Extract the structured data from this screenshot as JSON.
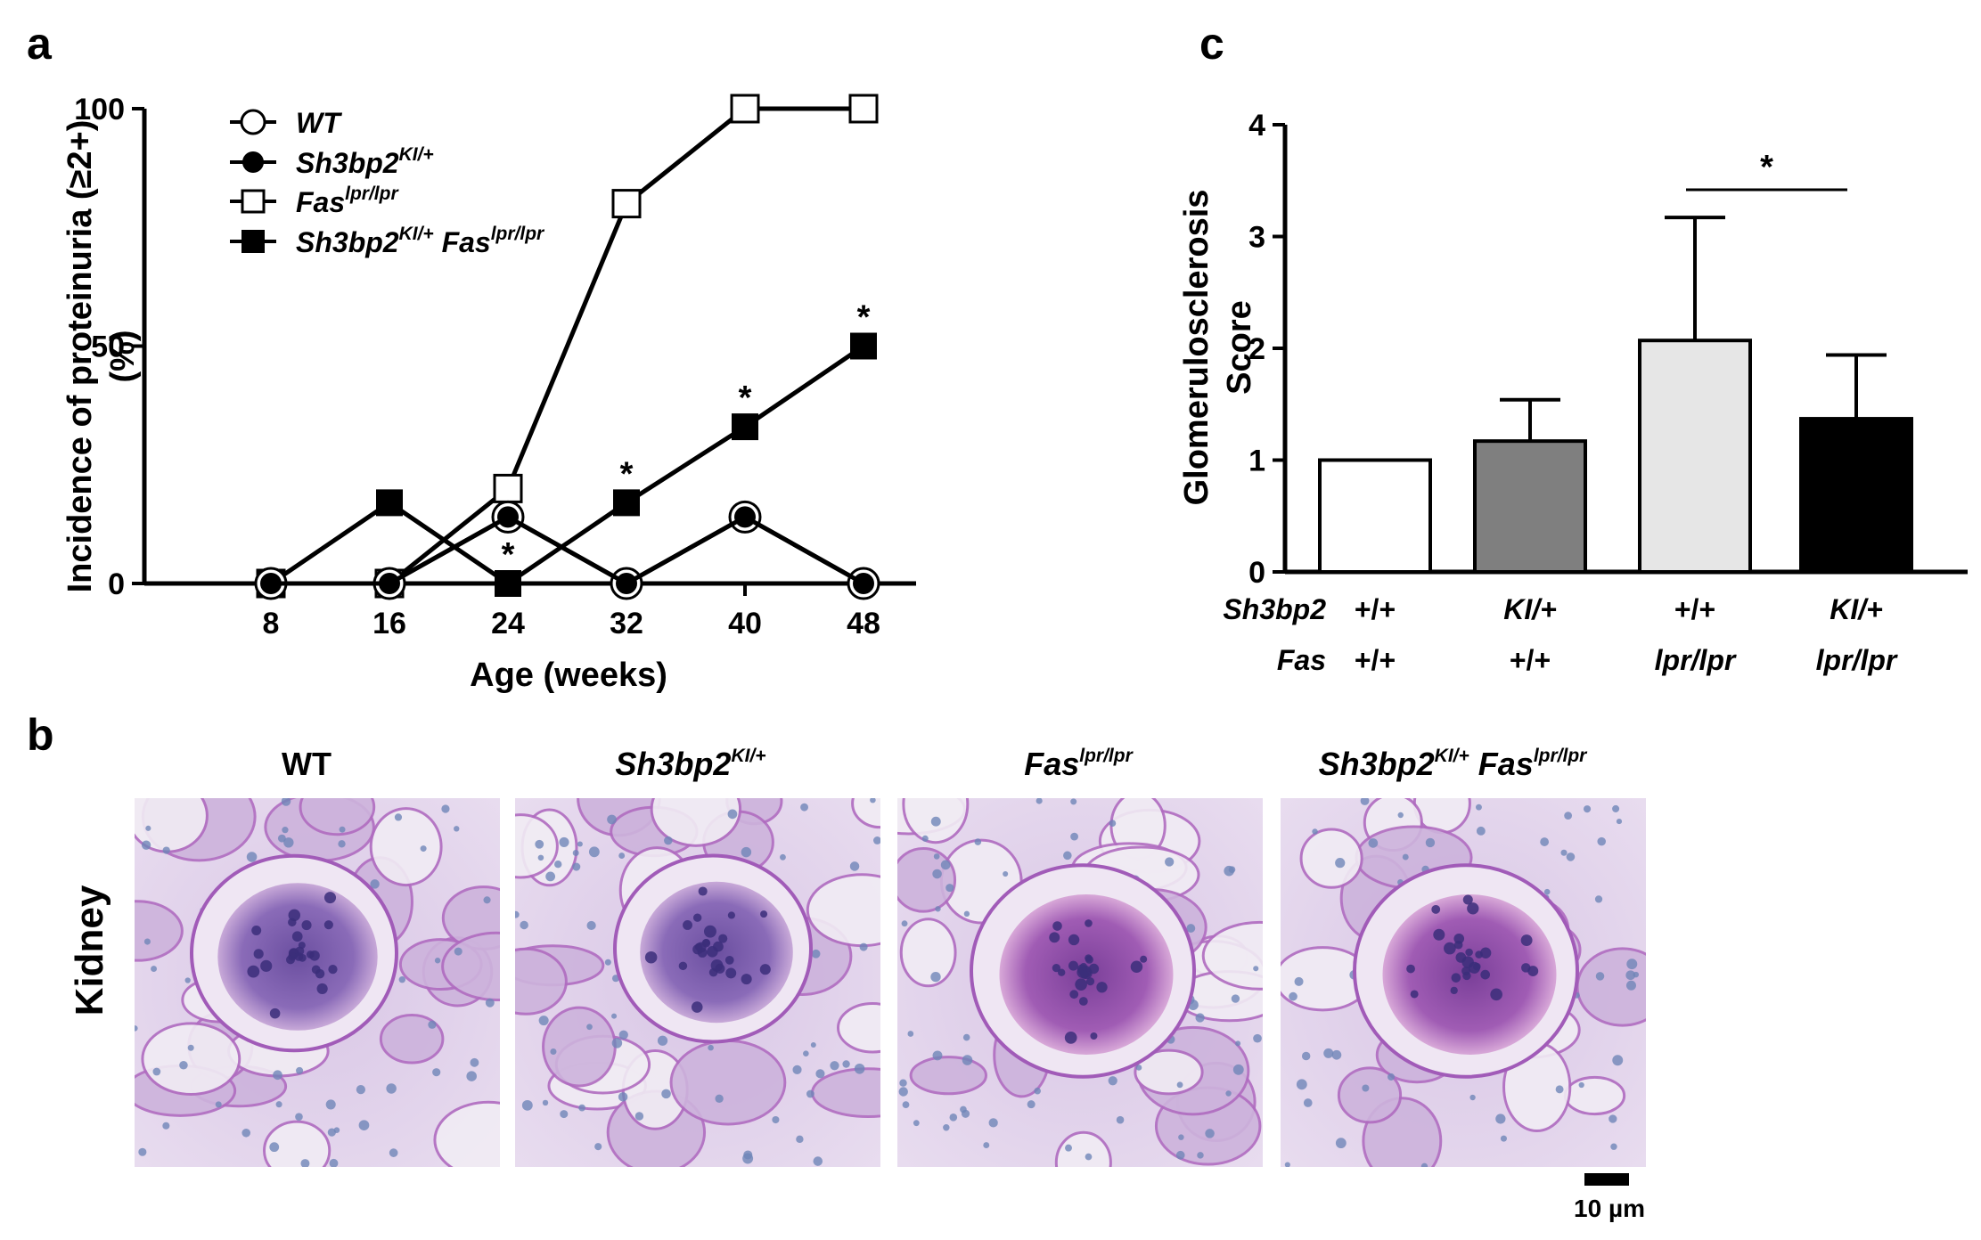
{
  "panels": {
    "a": "a",
    "b": "b",
    "c": "c"
  },
  "chart_data": [
    {
      "panel": "a",
      "type": "line",
      "x": [
        8,
        16,
        24,
        32,
        40,
        48
      ],
      "xlabel": "Age (weeks)",
      "ylabel": "Incidence of proteinuria (≥2+) (%)",
      "ylabel_lines": [
        "Incidence of proteinuria (≥2+)",
        "(%)"
      ],
      "ylim": [
        0,
        100
      ],
      "yticks": [
        0,
        50,
        100
      ],
      "legend_position": "top-left",
      "series": [
        {
          "key": "wt",
          "name": "WT",
          "marker": "open-circle",
          "values": [
            0,
            0,
            14,
            0,
            14,
            0
          ]
        },
        {
          "key": "ki",
          "name": "Sh3bp2KI/+",
          "marker": "filled-circle",
          "values": [
            0,
            0,
            14,
            0,
            14,
            0
          ]
        },
        {
          "key": "fas",
          "name": "Faslpr/lpr",
          "marker": "open-square",
          "values": [
            0,
            0,
            20,
            80,
            100,
            100
          ]
        },
        {
          "key": "kifas",
          "name": "Sh3bp2KI/+ Faslpr/lpr",
          "marker": "filled-square",
          "values": [
            0,
            17,
            0,
            17,
            33,
            50
          ]
        }
      ],
      "legend": {
        "wt": {
          "base": "WT",
          "sup": ""
        },
        "ki": {
          "base": "Sh3bp2",
          "sup": "KI/+"
        },
        "fas": {
          "base": "Fas",
          "sup": "lpr/lpr"
        },
        "kifas": {
          "base1": "Sh3bp2",
          "sup1": "KI/+",
          "base2": " Fas",
          "sup2": "lpr/lpr"
        }
      },
      "annotations": [
        {
          "x": 24,
          "text": "*"
        },
        {
          "x": 32,
          "text": "*"
        },
        {
          "x": 40,
          "text": "*"
        },
        {
          "x": 48,
          "text": "*"
        }
      ]
    },
    {
      "panel": "c",
      "type": "bar",
      "categories": [
        "+/+ +/+",
        "KI/+ +/+",
        "+/+ lpr/lpr",
        "KI/+ lpr/lpr"
      ],
      "values": [
        1.0,
        1.17,
        2.07,
        1.37
      ],
      "errors": [
        0.0,
        0.37,
        1.1,
        0.57
      ],
      "bar_colors": [
        "#ffffff",
        "#7f7f7f",
        "#e6e6e6",
        "#000000"
      ],
      "ylabel": "Glomerulosclerosis Score",
      "ylabel_lines": [
        "Glomerulosclerosis",
        "Score"
      ],
      "ylim": [
        0,
        4
      ],
      "yticks": [
        0,
        1,
        2,
        3,
        4
      ],
      "group_rows": [
        {
          "label": "Sh3bp2",
          "values": [
            "+/+",
            "KI/+",
            "+/+",
            "KI/+"
          ]
        },
        {
          "label": "Fas",
          "values": [
            "+/+",
            "+/+",
            "lpr/lpr",
            "lpr/lpr"
          ]
        }
      ],
      "significance": [
        {
          "from": 2,
          "to": 3,
          "text": "*"
        }
      ]
    }
  ],
  "micrographs": {
    "row_label": "Kidney",
    "panels": [
      {
        "title_plain": "WT"
      },
      {
        "title_base": "Sh3bp2",
        "title_sup": "KI/+"
      },
      {
        "title_base": "Fas",
        "title_sup": "lpr/lpr"
      },
      {
        "title_base": "Sh3bp2",
        "title_sup": "KI/+",
        "title_base2": " Fas",
        "title_sup2": "lpr/lpr"
      }
    ],
    "scale_bar": "10 µm"
  }
}
